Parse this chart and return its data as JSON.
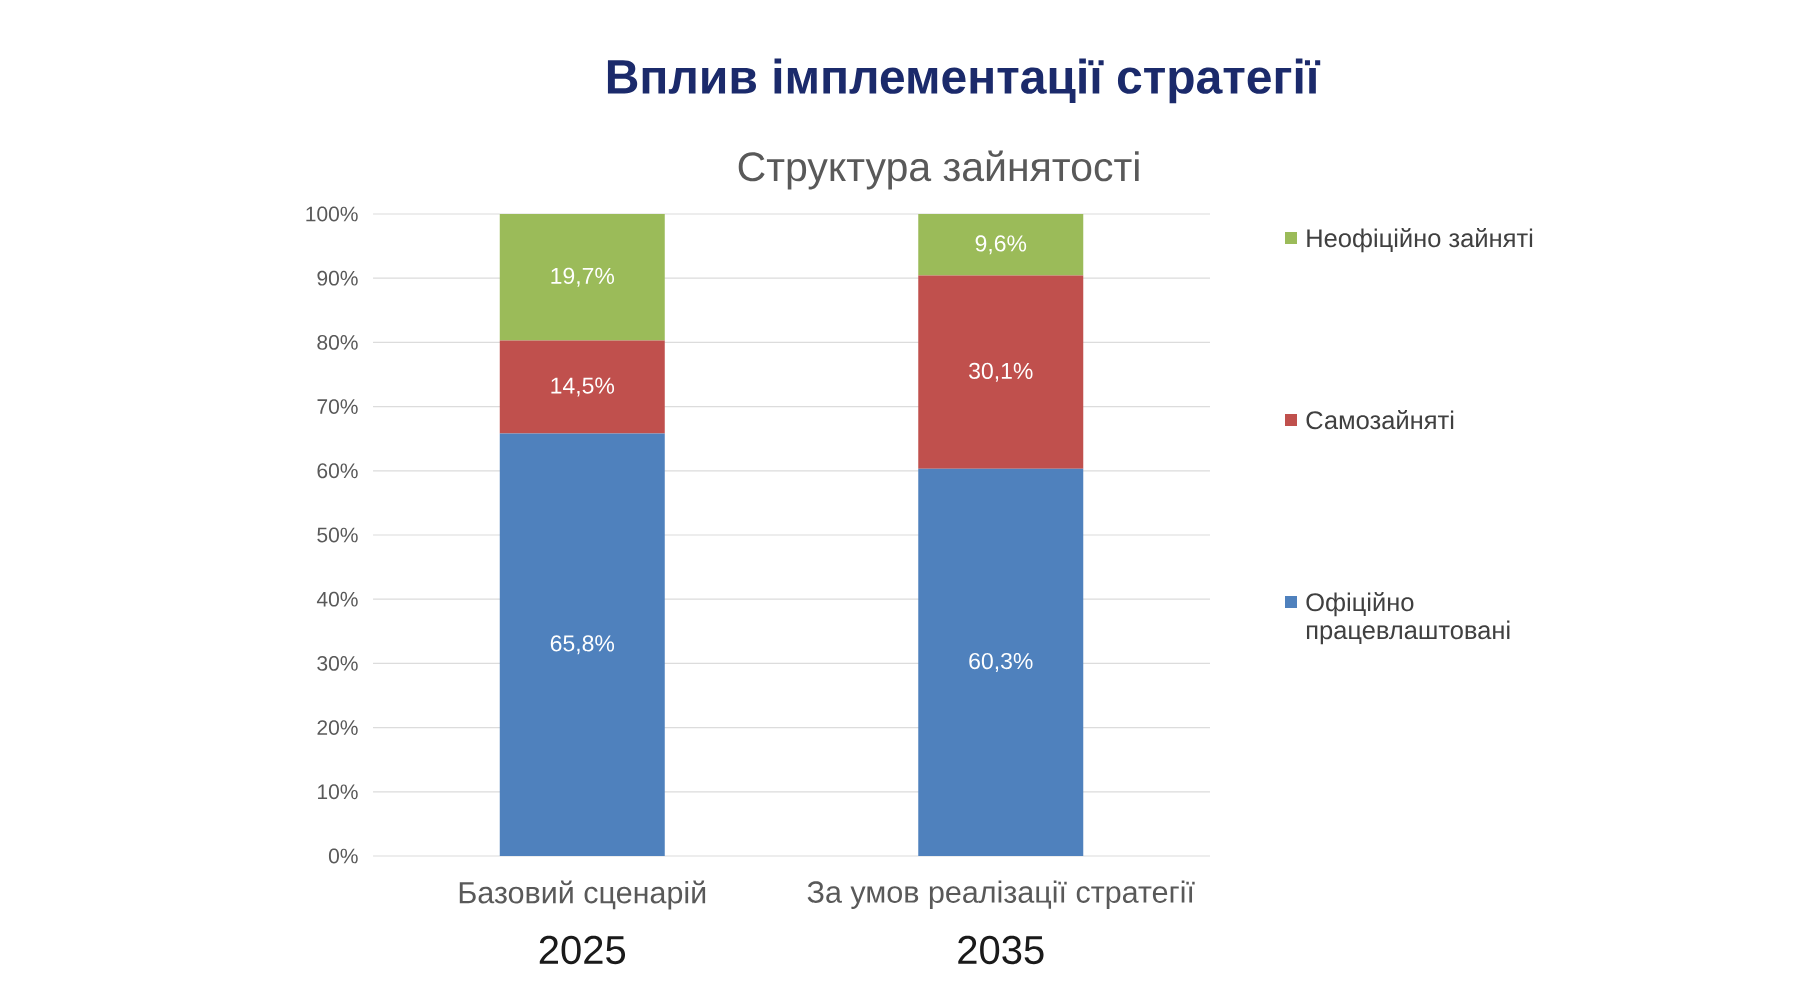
{
  "chart_data": {
    "type": "bar",
    "title": "Вплив імплементації стратегії",
    "subtitle": "Структура зайнятості",
    "categories": [
      "Базовий сценарій",
      "За умов реалізації стратегії"
    ],
    "stacked": true,
    "series": [
      {
        "name": "Офіційно працевлаштовані",
        "color": "#4f81bd",
        "values": [
          65.8,
          60.3
        ],
        "value_labels": [
          "65,8%",
          "60,3%"
        ]
      },
      {
        "name": "Самозайняті",
        "color": "#c0504d",
        "values": [
          14.5,
          30.1
        ],
        "value_labels": [
          "14,5%",
          "30,1%"
        ]
      },
      {
        "name": "Неофіційно зайняті",
        "color": "#9bbb59",
        "values": [
          19.7,
          9.6
        ],
        "value_labels": [
          "19,7%",
          "9,6%"
        ]
      }
    ],
    "ylim": [
      0,
      100
    ],
    "yticks": [
      {
        "value": 0,
        "label": "0%"
      },
      {
        "value": 10,
        "label": "10%"
      },
      {
        "value": 20,
        "label": "20%"
      },
      {
        "value": 30,
        "label": "30%"
      },
      {
        "value": 40,
        "label": "40%"
      },
      {
        "value": 50,
        "label": "50%"
      },
      {
        "value": 60,
        "label": "60%"
      },
      {
        "value": 70,
        "label": "70%"
      },
      {
        "value": 80,
        "label": "80%"
      },
      {
        "value": 90,
        "label": "90%"
      },
      {
        "value": 100,
        "label": "100%"
      }
    ],
    "grid": "y",
    "legend": "right",
    "annotations": [
      "2025",
      "2035"
    ]
  }
}
